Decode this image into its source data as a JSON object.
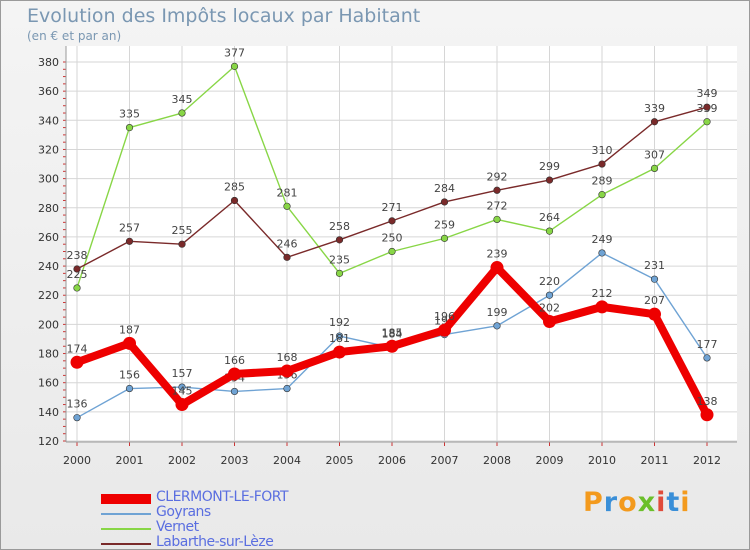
{
  "header": {
    "title": "Evolution des Impôts locaux par Habitant",
    "subtitle": "(en € et par an)"
  },
  "logo": {
    "text": "Proxiti",
    "colors": [
      "#f39a1d",
      "#3a8fd8",
      "#f39a1d",
      "#6bbf2a",
      "#e04b3a",
      "#3a8fd8",
      "#f39a1d"
    ]
  },
  "chart_data": {
    "type": "line",
    "x": [
      "2000",
      "2001",
      "2002",
      "2003",
      "2004",
      "2005",
      "2006",
      "2007",
      "2008",
      "2009",
      "2010",
      "2011",
      "2012"
    ],
    "ylim": [
      120,
      380
    ],
    "yticks": [
      120,
      140,
      160,
      180,
      200,
      220,
      240,
      260,
      280,
      300,
      320,
      340,
      360,
      380
    ],
    "grid": true,
    "legend": "bottom-left",
    "series": [
      {
        "name": "CLERMONT-LE-FORT",
        "color": "#ee0000",
        "values": [
          174,
          187,
          145,
          166,
          168,
          181,
          185,
          196,
          239,
          202,
          212,
          207,
          138
        ]
      },
      {
        "name": "Goyrans",
        "color": "#6fa3d4",
        "values": [
          136,
          156,
          157,
          154,
          156,
          192,
          184,
          193,
          199,
          220,
          249,
          231,
          177
        ]
      },
      {
        "name": "Vernet",
        "color": "#88d646",
        "values": [
          225,
          335,
          345,
          377,
          281,
          235,
          250,
          259,
          272,
          264,
          289,
          307,
          339
        ]
      },
      {
        "name": "Labarthe-sur-Lèze",
        "color": "#7a2a2a",
        "values": [
          238,
          257,
          255,
          285,
          246,
          258,
          271,
          284,
          292,
          299,
          310,
          339,
          349
        ]
      }
    ]
  }
}
